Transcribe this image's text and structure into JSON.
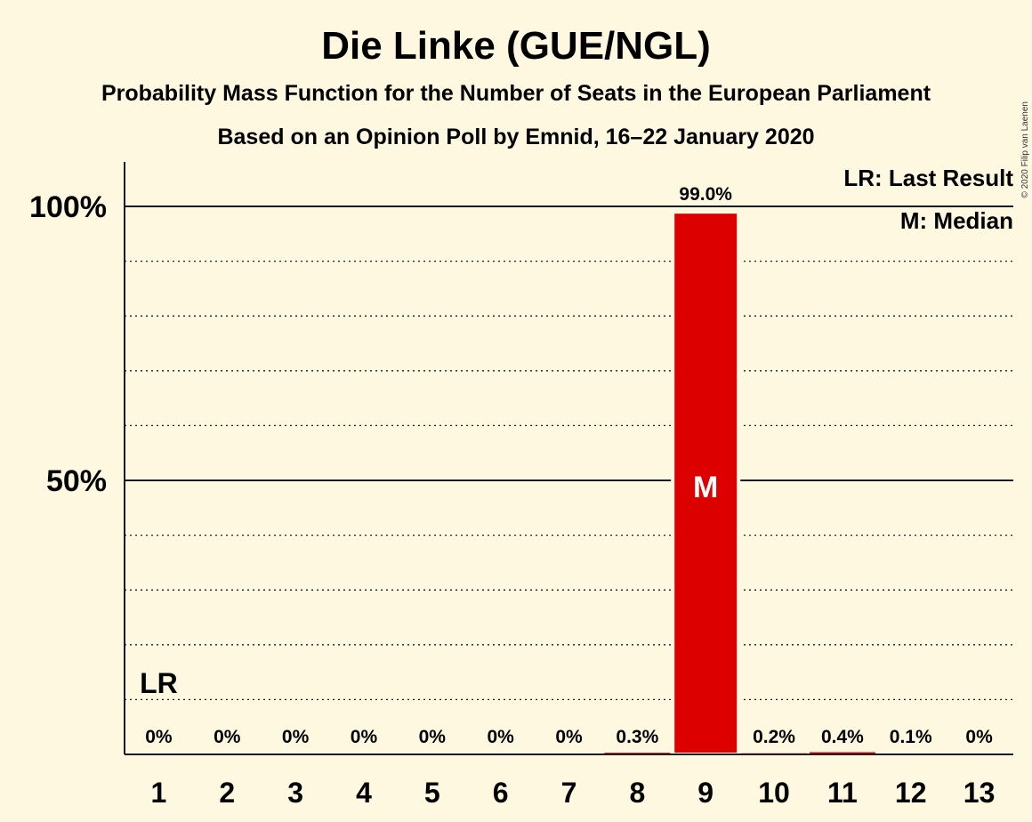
{
  "chart_data": {
    "type": "bar",
    "title": "Die Linke (GUE/NGL)",
    "subtitle": "Probability Mass Function for the Number of Seats in the European Parliament",
    "subtitle2": "Based on an Opinion Poll by Emnid, 16–22 January 2020",
    "categories": [
      "1",
      "2",
      "3",
      "4",
      "5",
      "6",
      "7",
      "8",
      "9",
      "10",
      "11",
      "12",
      "13"
    ],
    "values": [
      0,
      0,
      0,
      0,
      0,
      0,
      0,
      0.3,
      99.0,
      0.2,
      0.4,
      0.1,
      0
    ],
    "value_labels": [
      "0%",
      "0%",
      "0%",
      "0%",
      "0%",
      "0%",
      "0%",
      "0.3%",
      "99.0%",
      "0.2%",
      "0.4%",
      "0.1%",
      "0%"
    ],
    "ylim": [
      0,
      100
    ],
    "ytick_labels": [
      "50%",
      "100%"
    ],
    "bar_color": "#dd0000",
    "last_result_category": "1",
    "last_result_label": "LR",
    "median_category": "9",
    "median_label": "M",
    "legend": [
      "LR: Last Result",
      "M: Median"
    ],
    "legend_position": "top-right",
    "copyright": "© 2020 Filip van Laenen"
  }
}
